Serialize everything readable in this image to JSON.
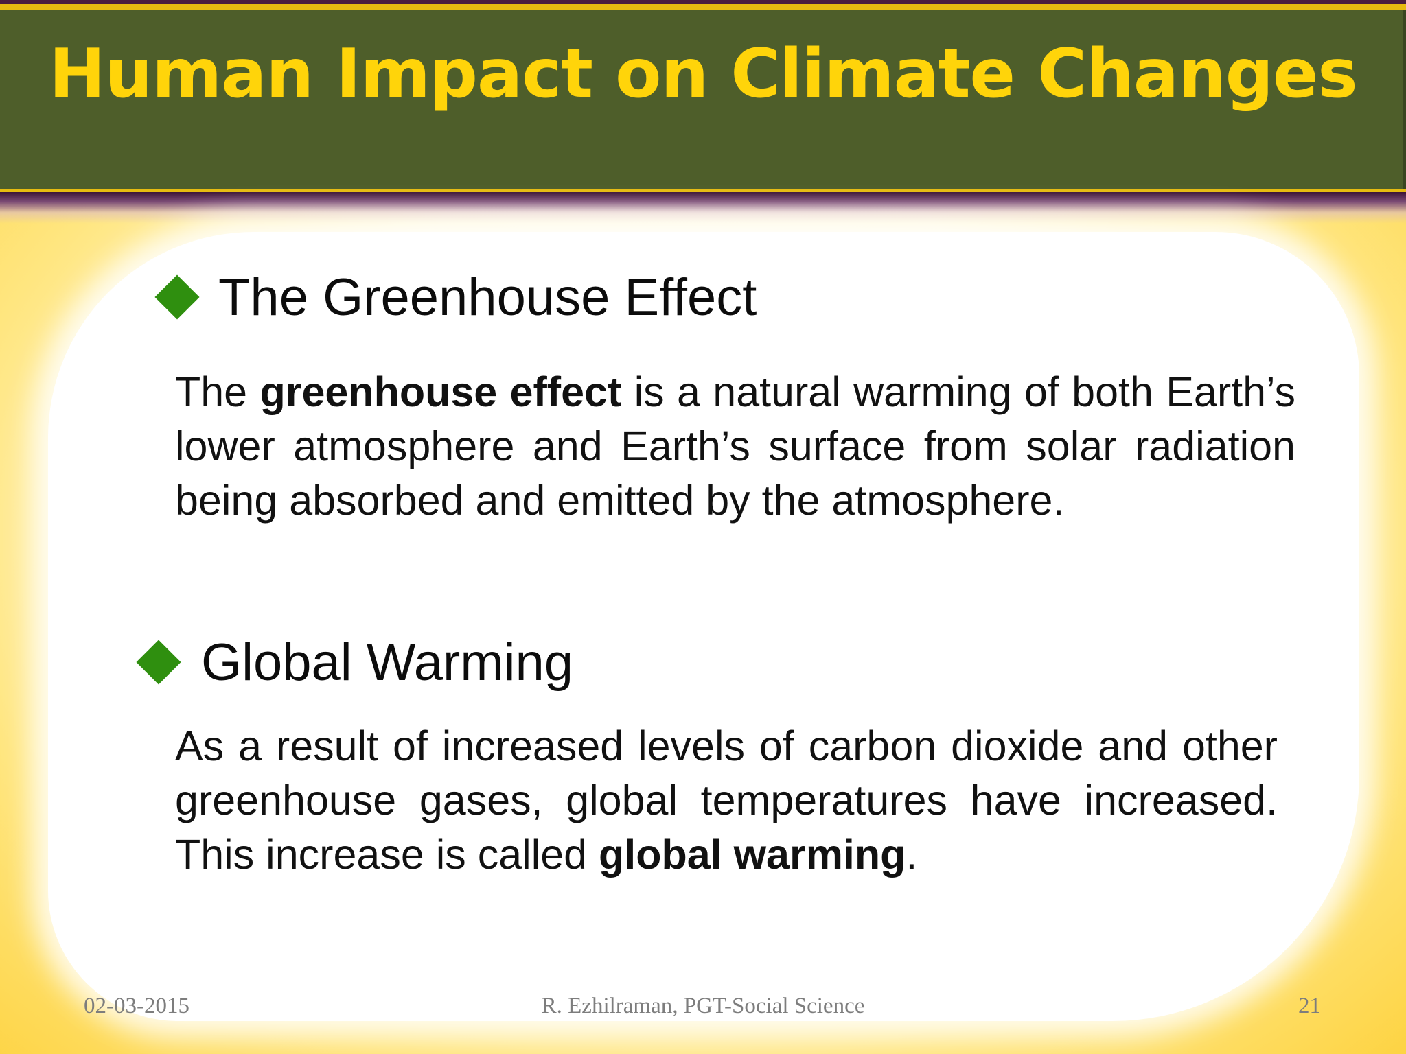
{
  "slide": {
    "title": "Human Impact on Climate Changes",
    "sections": [
      {
        "heading": "The Greenhouse Effect",
        "body": {
          "part1": "The ",
          "bold1": "greenhouse effect",
          "part2": " is a natural warming of both Earth’s lower atmosphere and Earth’s surface from solar radiation being absorbed and emitted by the atmosphere."
        }
      },
      {
        "heading": "Global Warming",
        "body": {
          "part1": "As a result of increased levels of carbon dioxide and other greenhouse gases, global temperatures have increased. This increase is called ",
          "bold1": "global warming",
          "part2": "."
        }
      }
    ],
    "footer": {
      "date": "02-03-2015",
      "author": "R. Ezhilraman, PGT-Social Science",
      "page": "21"
    }
  },
  "colors": {
    "title_band": "#4e5e2a",
    "title_text": "#ffd40a",
    "bullet": "#2f8f0f",
    "accent_gold": "#e6bb10",
    "purple_rule": "#4a1e3e"
  }
}
